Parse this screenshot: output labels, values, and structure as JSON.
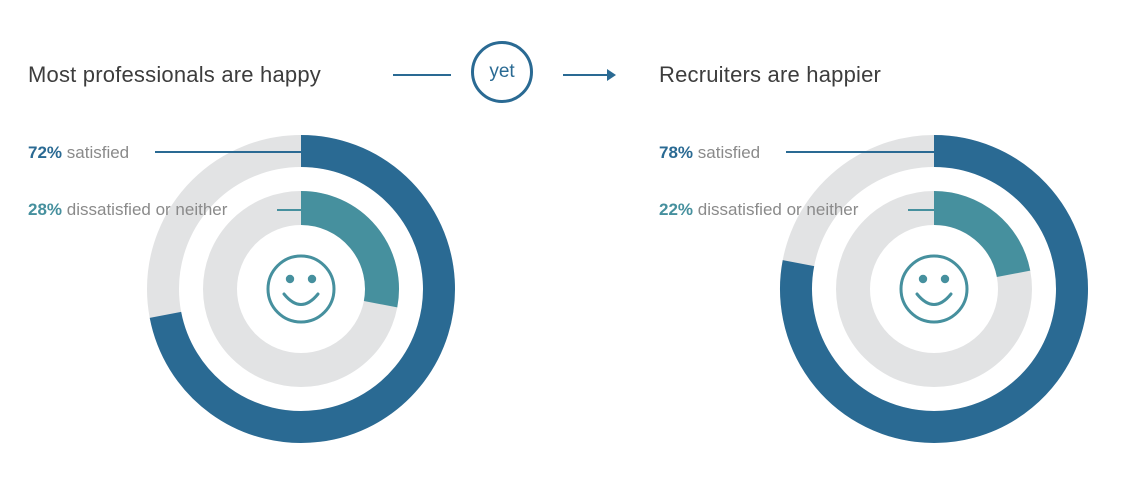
{
  "header": {
    "left_title": "Most professionals are happy",
    "connector_word": "yet",
    "right_title": "Recruiters are happier"
  },
  "colors": {
    "outer_ring": "#2a6a93",
    "inner_ring": "#46909e",
    "track": "#e2e3e4",
    "title_text": "#3d3d3d",
    "label_text": "#8a8a8a"
  },
  "icons": {
    "center_icon": "smiley-face-icon",
    "connector_arrow": "arrow-right-icon"
  },
  "chart_data": [
    {
      "type": "pie",
      "title": "Most professionals are happy",
      "rings": [
        {
          "ring": "outer",
          "pct_text": "72%",
          "label": "satisfied",
          "value": 72
        },
        {
          "ring": "inner",
          "pct_text": "28%",
          "label": "dissatisfied or neither",
          "value": 28
        }
      ]
    },
    {
      "type": "pie",
      "title": "Recruiters are happier",
      "rings": [
        {
          "ring": "outer",
          "pct_text": "78%",
          "label": "satisfied",
          "value": 78
        },
        {
          "ring": "inner",
          "pct_text": "22%",
          "label": "dissatisfied or neither",
          "value": 22
        }
      ]
    }
  ]
}
